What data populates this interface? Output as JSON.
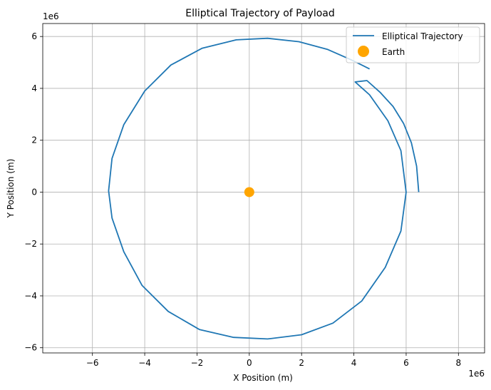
{
  "chart_data": {
    "type": "line",
    "title": "Elliptical Trajectory of Payload",
    "xlabel": "X Position (m)",
    "ylabel": "Y Position (m)",
    "x_offset_text": "1e6",
    "y_offset_text": "1e6",
    "xlim": [
      -7.9,
      9.0
    ],
    "ylim": [
      -6.2,
      6.5
    ],
    "xticks": [
      -6,
      -4,
      -2,
      0,
      2,
      4,
      6,
      8
    ],
    "yticks": [
      -6,
      -4,
      -2,
      0,
      2,
      4,
      6
    ],
    "xtick_labels": [
      "−6",
      "−4",
      "−2",
      "0",
      "2",
      "4",
      "6",
      "8"
    ],
    "ytick_labels": [
      "−6",
      "−4",
      "−2",
      "0",
      "2",
      "4",
      "6"
    ],
    "grid": true,
    "legend_position": "top-right",
    "series": [
      {
        "name": "Elliptical Trajectory",
        "kind": "line",
        "color": "#1f77b4",
        "x": [
          6.48,
          6.4,
          6.2,
          5.9,
          5.5,
          5.0,
          4.5,
          4.05,
          4.6,
          5.3,
          5.8,
          6.0,
          5.8,
          5.2,
          4.3,
          3.2,
          2.0,
          0.7,
          -0.6,
          -1.9,
          -3.1,
          -4.1,
          -4.8,
          -5.25,
          -5.38,
          -5.25,
          -4.8,
          -4.0,
          -3.0,
          -1.8,
          -0.5,
          0.7,
          1.9,
          3.0,
          3.9,
          4.6
        ],
        "y": [
          0.0,
          1.0,
          1.9,
          2.65,
          3.3,
          3.85,
          4.3,
          4.25,
          3.75,
          2.75,
          1.6,
          0.0,
          -1.5,
          -2.9,
          -4.2,
          -5.05,
          -5.5,
          -5.66,
          -5.6,
          -5.3,
          -4.6,
          -3.6,
          -2.3,
          -1.0,
          0.05,
          1.3,
          2.6,
          3.9,
          4.9,
          5.55,
          5.87,
          5.93,
          5.8,
          5.5,
          5.1,
          4.75
        ]
      },
      {
        "name": "Earth",
        "kind": "scatter",
        "color": "#ffa500",
        "x": [
          0
        ],
        "y": [
          0
        ]
      }
    ]
  }
}
